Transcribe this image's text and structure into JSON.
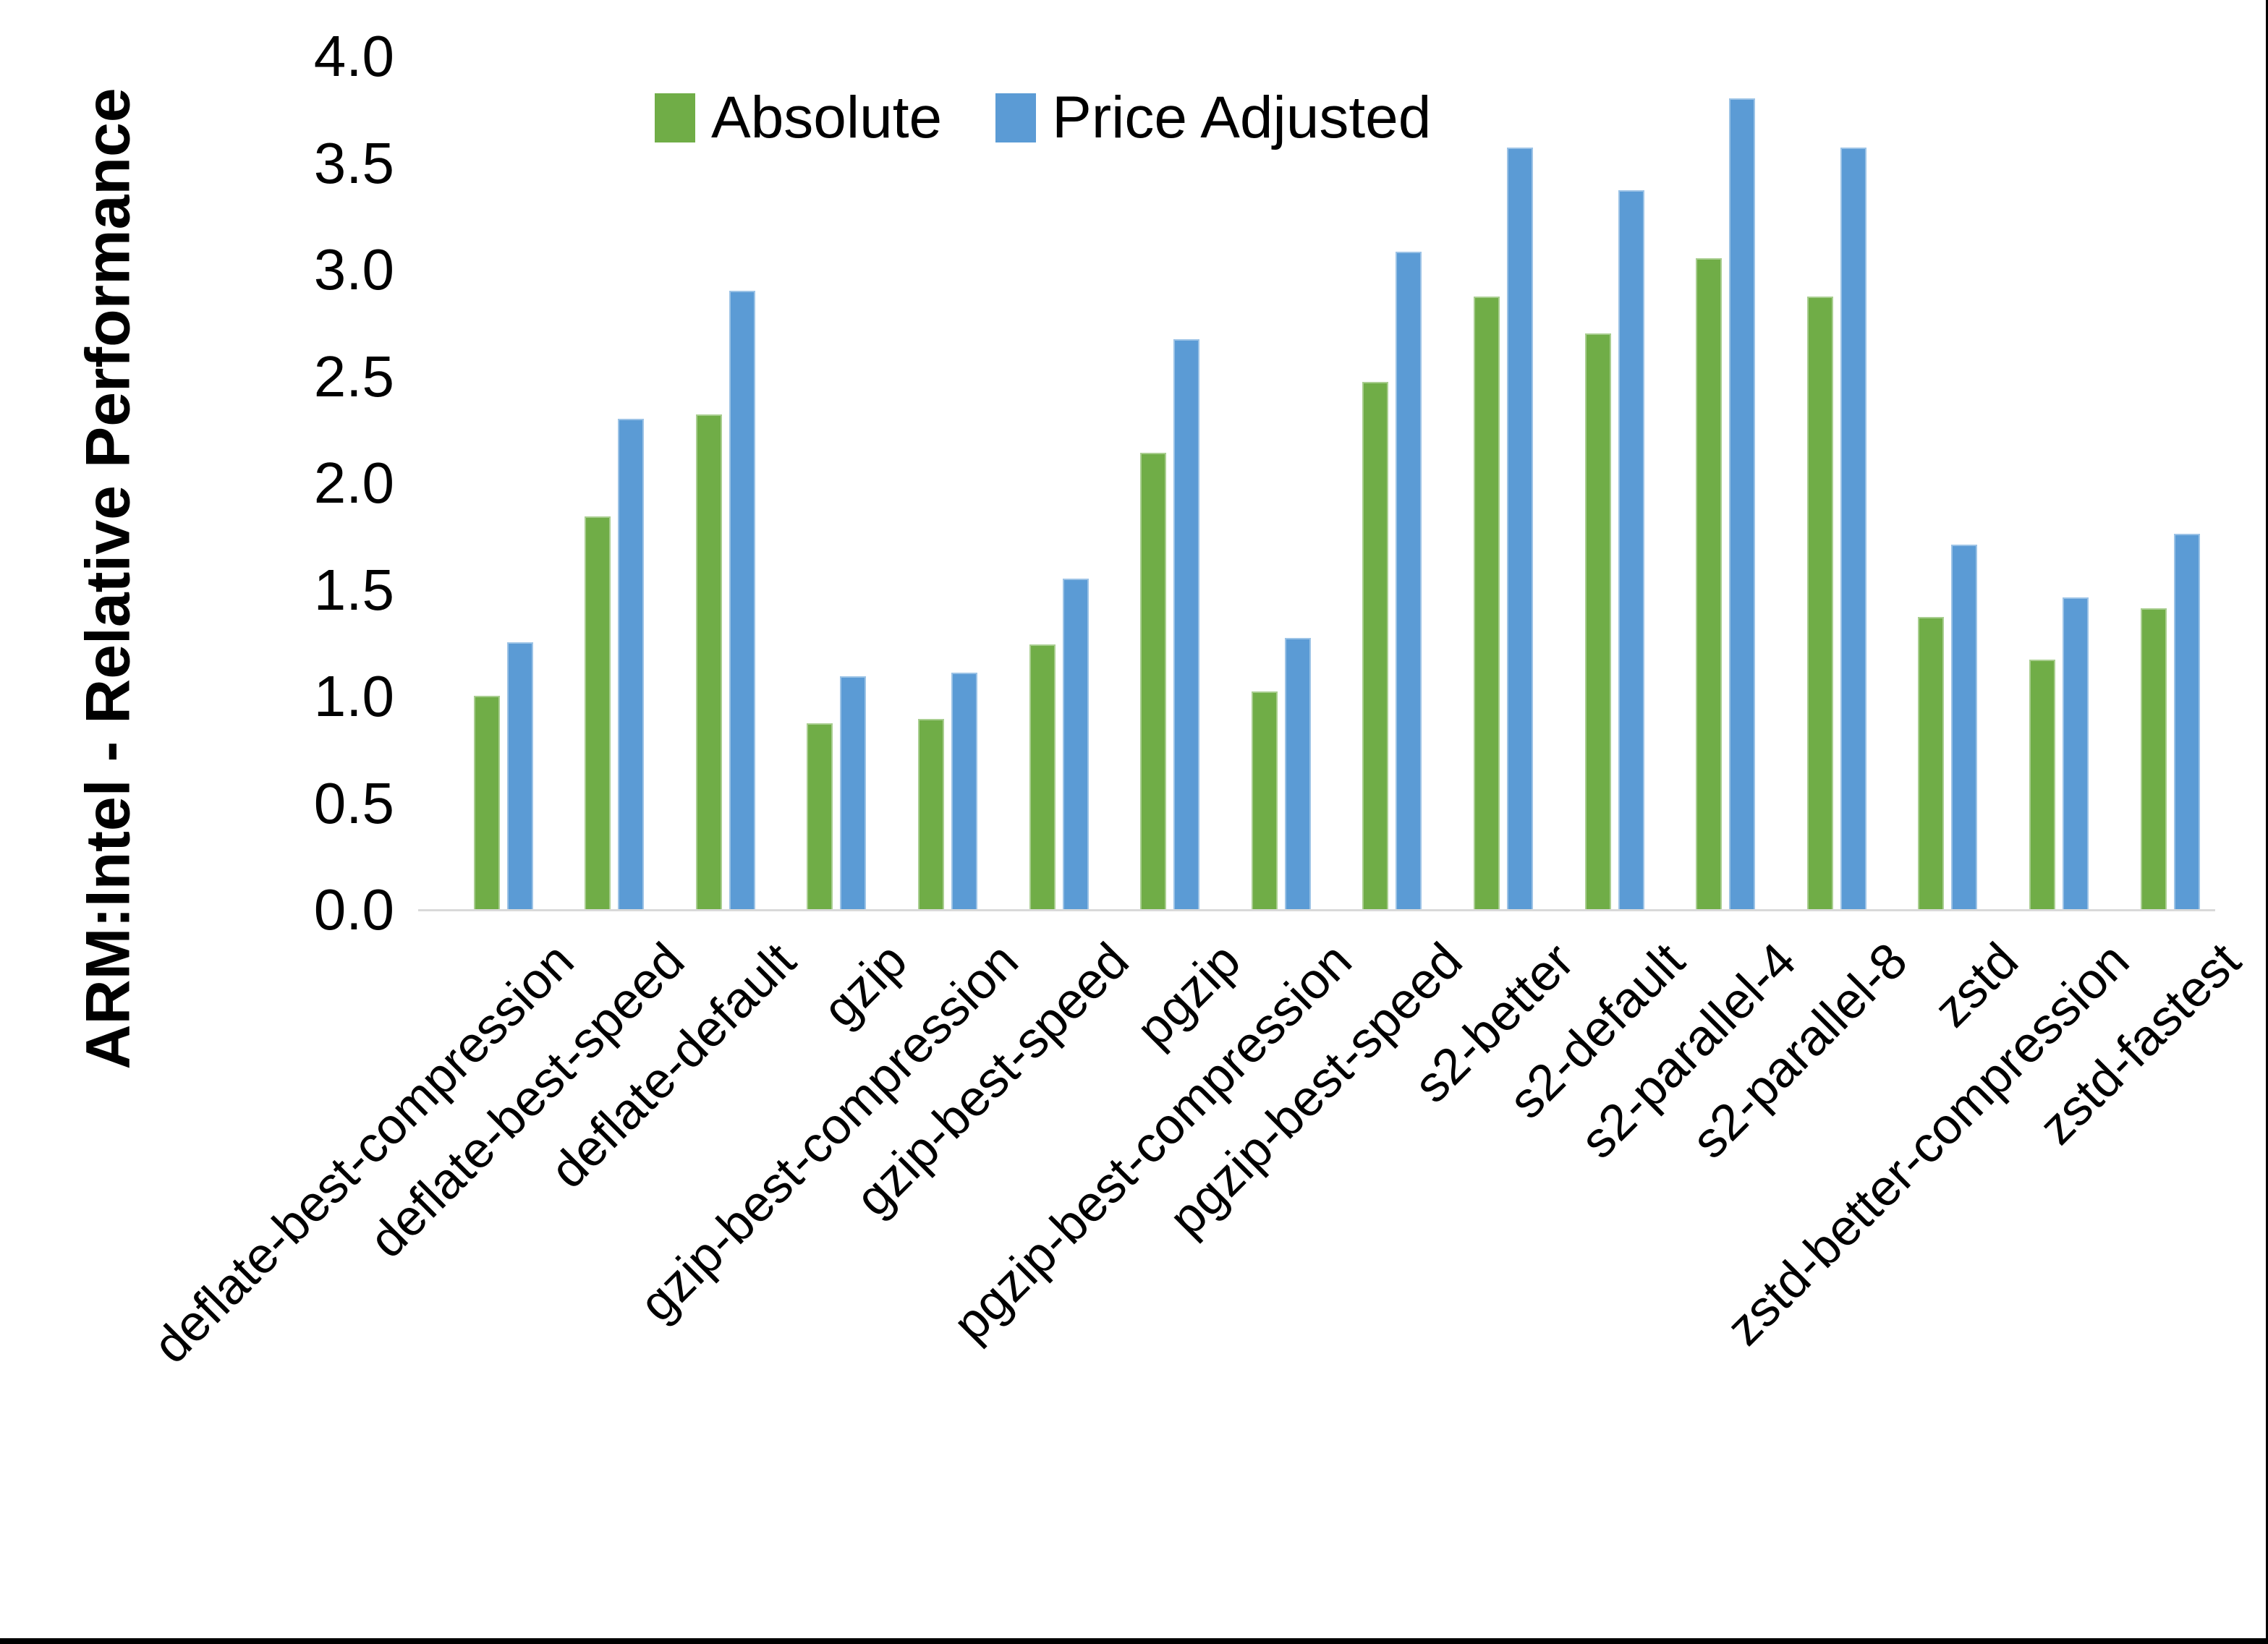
{
  "chart_data": {
    "type": "bar",
    "title": "",
    "ylabel": "ARM:Intel - Relative Performance",
    "xlabel": "",
    "ylim": [
      0.0,
      4.0
    ],
    "yticks": [
      "0.0",
      "0.5",
      "1.0",
      "1.5",
      "2.0",
      "2.5",
      "3.0",
      "3.5",
      "4.0"
    ],
    "grid": false,
    "legend_position": "top",
    "background_color": "#ffffff",
    "axis_line_color": "#d9d9d9",
    "categories": [
      "deflate-best-compression",
      "deflate-best-speed",
      "deflate-default",
      "gzip",
      "gzip-best-compression",
      "gzip-best-speed",
      "pgzip",
      "pgzip-best-compression",
      "pgzip-best-speed",
      "s2-better",
      "s2-default",
      "s2-parallel-4",
      "s2-parallel-8",
      "zstd",
      "zstd-better-compression",
      "zstd-fastest"
    ],
    "series": [
      {
        "name": "Absolute",
        "color": "#70AD47",
        "values": [
          1.0,
          1.84,
          2.32,
          0.87,
          0.89,
          1.24,
          2.14,
          1.02,
          2.47,
          2.87,
          2.7,
          3.05,
          2.87,
          1.37,
          1.17,
          1.41
        ]
      },
      {
        "name": "Price Adjusted",
        "color": "#5B9BD5",
        "values": [
          1.25,
          2.3,
          2.9,
          1.09,
          1.11,
          1.55,
          2.67,
          1.27,
          3.08,
          3.57,
          3.37,
          3.8,
          3.57,
          1.71,
          1.46,
          1.76
        ]
      }
    ]
  }
}
